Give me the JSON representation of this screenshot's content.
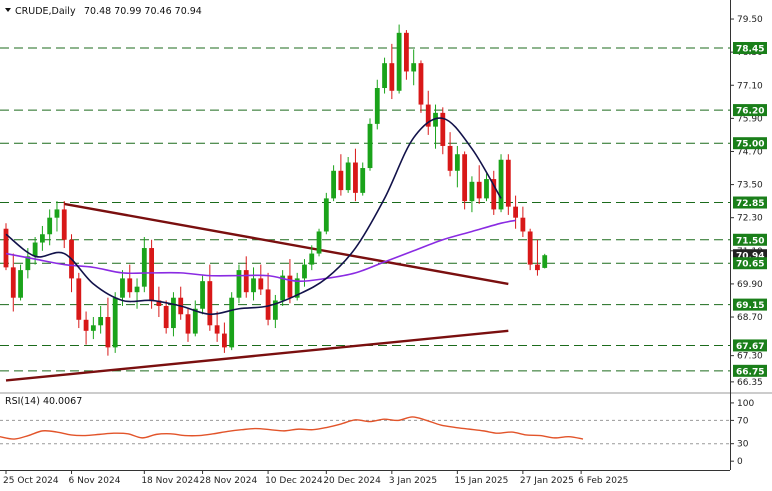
{
  "chart_data": {
    "type": "candlestick",
    "symbol": "CRUDE",
    "timeframe": "Daily",
    "ohlc_header": [
      "70.48",
      "70.99",
      "70.46",
      "70.94"
    ],
    "y_ticks": [
      66.35,
      67.3,
      68.7,
      69.9,
      71.1,
      72.3,
      73.5,
      74.7,
      75.9,
      77.1,
      78.3,
      79.5
    ],
    "ylim": [
      66.2,
      79.9
    ],
    "support_resistance": [
      78.45,
      76.2,
      75.0,
      72.85,
      71.5,
      70.65,
      69.15,
      67.67,
      66.75
    ],
    "price_badges": [
      {
        "value": "78.45",
        "color": "#1a7f1a"
      },
      {
        "value": "76.20",
        "color": "#1a7f1a"
      },
      {
        "value": "75.00",
        "color": "#1a7f1a"
      },
      {
        "value": "72.85",
        "color": "#1a7f1a"
      },
      {
        "value": "71.50",
        "color": "#1a7f1a"
      },
      {
        "value": "70.94",
        "color": "#222222"
      },
      {
        "value": "70.65",
        "color": "#1a7f1a"
      },
      {
        "value": "69.15",
        "color": "#1a7f1a"
      },
      {
        "value": "67.67",
        "color": "#1a7f1a"
      },
      {
        "value": "66.75",
        "color": "#1a7f1a"
      }
    ],
    "x_tick_labels": [
      {
        "i": 0,
        "label": "25 Oct 2024"
      },
      {
        "i": 9,
        "label": "6 Nov 2024"
      },
      {
        "i": 19,
        "label": "18 Nov 2024"
      },
      {
        "i": 27,
        "label": "28 Nov 2024"
      },
      {
        "i": 36,
        "label": "10 Dec 2024"
      },
      {
        "i": 44,
        "label": "20 Dec 2024"
      },
      {
        "i": 53,
        "label": "3 Jan 2025"
      },
      {
        "i": 62,
        "label": "15 Jan 2025"
      },
      {
        "i": 71,
        "label": "27 Jan 2025"
      },
      {
        "i": 79,
        "label": "6 Feb 2025"
      }
    ],
    "candles": [
      [
        71.9,
        72.1,
        70.4,
        70.5
      ],
      [
        70.5,
        71.0,
        68.9,
        69.4
      ],
      [
        69.4,
        70.6,
        69.3,
        70.4
      ],
      [
        70.4,
        71.2,
        70.1,
        70.9
      ],
      [
        70.9,
        71.6,
        70.6,
        71.4
      ],
      [
        71.4,
        72.0,
        71.1,
        71.7
      ],
      [
        71.7,
        72.6,
        71.3,
        72.3
      ],
      [
        72.3,
        72.9,
        71.8,
        72.6
      ],
      [
        72.6,
        72.9,
        71.2,
        71.5
      ],
      [
        71.5,
        71.7,
        69.6,
        70.1
      ],
      [
        70.1,
        70.3,
        68.3,
        68.6
      ],
      [
        68.6,
        68.9,
        67.7,
        68.2
      ],
      [
        68.2,
        68.7,
        67.9,
        68.4
      ],
      [
        68.4,
        69.1,
        68.1,
        68.7
      ],
      [
        68.7,
        69.4,
        67.3,
        67.6
      ],
      [
        67.6,
        69.6,
        67.4,
        69.4
      ],
      [
        69.4,
        70.4,
        69.1,
        70.1
      ],
      [
        70.1,
        70.6,
        69.4,
        69.6
      ],
      [
        69.6,
        70.1,
        69.0,
        69.8
      ],
      [
        69.8,
        71.6,
        69.6,
        71.2
      ],
      [
        71.2,
        71.5,
        69.0,
        69.3
      ],
      [
        69.3,
        69.8,
        68.7,
        69.1
      ],
      [
        69.1,
        69.3,
        68.1,
        68.3
      ],
      [
        68.3,
        69.6,
        68.0,
        69.4
      ],
      [
        69.4,
        69.8,
        68.6,
        68.8
      ],
      [
        68.8,
        69.0,
        67.8,
        68.1
      ],
      [
        68.1,
        69.3,
        68.0,
        69.0
      ],
      [
        69.0,
        70.2,
        68.8,
        70.0
      ],
      [
        70.0,
        70.6,
        68.2,
        68.4
      ],
      [
        68.4,
        68.9,
        67.8,
        68.1
      ],
      [
        68.1,
        68.5,
        67.4,
        67.6
      ],
      [
        67.6,
        69.6,
        67.5,
        69.4
      ],
      [
        69.4,
        70.6,
        69.2,
        70.4
      ],
      [
        70.4,
        70.9,
        69.4,
        69.6
      ],
      [
        69.6,
        70.5,
        69.3,
        70.1
      ],
      [
        70.1,
        70.6,
        69.5,
        69.7
      ],
      [
        69.7,
        70.3,
        68.4,
        68.6
      ],
      [
        68.6,
        69.5,
        68.3,
        69.3
      ],
      [
        69.3,
        70.4,
        69.1,
        70.2
      ],
      [
        70.2,
        70.8,
        69.2,
        69.4
      ],
      [
        69.4,
        70.3,
        69.3,
        70.1
      ],
      [
        70.1,
        70.8,
        69.8,
        70.6
      ],
      [
        70.6,
        71.3,
        70.4,
        71.0
      ],
      [
        71.0,
        71.9,
        70.9,
        71.8
      ],
      [
        71.8,
        73.2,
        71.7,
        73.0
      ],
      [
        73.0,
        74.2,
        72.9,
        74.0
      ],
      [
        74.0,
        74.6,
        73.1,
        73.3
      ],
      [
        73.3,
        74.5,
        73.2,
        74.3
      ],
      [
        74.3,
        74.8,
        72.9,
        73.2
      ],
      [
        73.2,
        74.3,
        73.1,
        74.1
      ],
      [
        74.1,
        75.9,
        74.0,
        75.7
      ],
      [
        75.7,
        77.3,
        75.5,
        77.0
      ],
      [
        77.0,
        78.1,
        76.8,
        77.9
      ],
      [
        77.9,
        78.6,
        76.6,
        76.9
      ],
      [
        76.9,
        79.3,
        76.8,
        79.0
      ],
      [
        79.0,
        79.1,
        77.3,
        77.6
      ],
      [
        77.6,
        78.4,
        77.1,
        77.9
      ],
      [
        77.9,
        78.0,
        76.1,
        76.4
      ],
      [
        76.4,
        76.9,
        75.3,
        75.6
      ],
      [
        75.6,
        76.4,
        74.8,
        76.1
      ],
      [
        76.1,
        76.3,
        74.6,
        74.9
      ],
      [
        74.9,
        75.4,
        73.8,
        74.0
      ],
      [
        74.0,
        74.9,
        73.4,
        74.6
      ],
      [
        74.6,
        74.7,
        72.6,
        72.9
      ],
      [
        72.9,
        73.8,
        72.5,
        73.6
      ],
      [
        73.6,
        74.2,
        72.8,
        73.0
      ],
      [
        73.0,
        73.9,
        72.9,
        73.7
      ],
      [
        73.7,
        74.0,
        72.4,
        72.6
      ],
      [
        72.6,
        74.6,
        72.5,
        74.4
      ],
      [
        74.4,
        74.6,
        72.4,
        72.7
      ],
      [
        72.7,
        73.1,
        71.9,
        72.3
      ],
      [
        72.3,
        72.7,
        71.6,
        71.8
      ],
      [
        71.8,
        71.9,
        70.4,
        70.6
      ],
      [
        70.6,
        71.5,
        70.2,
        70.4
      ],
      [
        70.48,
        70.99,
        70.46,
        70.94
      ]
    ],
    "sma_dark": [
      [
        0,
        71.7
      ],
      [
        4,
        70.9
      ],
      [
        8,
        71.0
      ],
      [
        12,
        69.9
      ],
      [
        16,
        69.3
      ],
      [
        20,
        69.3
      ],
      [
        24,
        69.1
      ],
      [
        28,
        68.8
      ],
      [
        32,
        69.0
      ],
      [
        36,
        69.1
      ],
      [
        40,
        69.5
      ],
      [
        44,
        70.1
      ],
      [
        48,
        71.2
      ],
      [
        52,
        73.0
      ],
      [
        56,
        75.2
      ],
      [
        60,
        75.9
      ],
      [
        64,
        74.8
      ],
      [
        68,
        73.0
      ]
    ],
    "sma_purple": [
      [
        0,
        71.0
      ],
      [
        4,
        70.8
      ],
      [
        8,
        70.6
      ],
      [
        12,
        70.5
      ],
      [
        16,
        70.3
      ],
      [
        20,
        70.3
      ],
      [
        24,
        70.3
      ],
      [
        28,
        70.2
      ],
      [
        32,
        70.2
      ],
      [
        36,
        70.2
      ],
      [
        40,
        70.0
      ],
      [
        44,
        70.1
      ],
      [
        48,
        70.3
      ],
      [
        52,
        70.7
      ],
      [
        56,
        71.1
      ],
      [
        60,
        71.5
      ],
      [
        64,
        71.8
      ],
      [
        68,
        72.1
      ],
      [
        70,
        72.2
      ]
    ],
    "trendlines": [
      {
        "from": [
          8,
          72.8
        ],
        "to": [
          69,
          69.9
        ],
        "color": "#7a0f0f"
      },
      {
        "from": [
          0,
          66.4
        ],
        "to": [
          69,
          68.2
        ],
        "color": "#7a0f0f"
      }
    ],
    "rsi": {
      "label": "RSI(14) 40.0067",
      "ticks": [
        100,
        70,
        30,
        0
      ],
      "ylim": [
        -10,
        105
      ],
      "levels": [
        70,
        30
      ],
      "values": [
        [
          0,
          42
        ],
        [
          3,
          38
        ],
        [
          6,
          44
        ],
        [
          9,
          52
        ],
        [
          12,
          50
        ],
        [
          15,
          45
        ],
        [
          18,
          44
        ],
        [
          21,
          46
        ],
        [
          24,
          48
        ],
        [
          27,
          47
        ],
        [
          30,
          40
        ],
        [
          33,
          46
        ],
        [
          36,
          47
        ],
        [
          39,
          44
        ],
        [
          42,
          44
        ],
        [
          45,
          47
        ],
        [
          48,
          51
        ],
        [
          51,
          54
        ],
        [
          54,
          56
        ],
        [
          57,
          54
        ],
        [
          60,
          52
        ],
        [
          63,
          55
        ],
        [
          66,
          54
        ],
        [
          69,
          58
        ],
        [
          72,
          64
        ],
        [
          75,
          71
        ],
        [
          78,
          68
        ],
        [
          81,
          72
        ],
        [
          84,
          70
        ],
        [
          87,
          76
        ],
        [
          90,
          70
        ],
        [
          93,
          62
        ],
        [
          96,
          58
        ],
        [
          99,
          55
        ],
        [
          102,
          52
        ],
        [
          105,
          48
        ],
        [
          108,
          50
        ],
        [
          111,
          45
        ],
        [
          114,
          44
        ],
        [
          117,
          40
        ],
        [
          120,
          42
        ],
        [
          123,
          38
        ]
      ]
    }
  }
}
